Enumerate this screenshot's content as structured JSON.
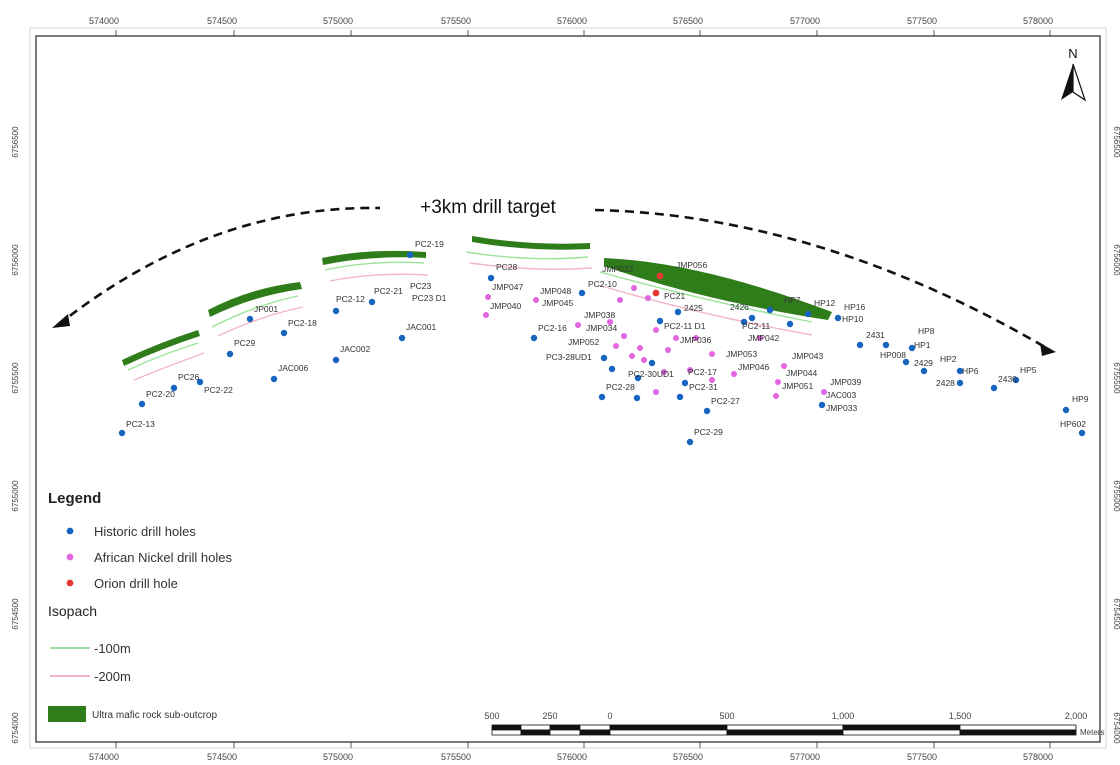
{
  "map": {
    "target_label": "+3km drill target",
    "north_label": "N",
    "x_ticks": [
      "574000",
      "574500",
      "575000",
      "575500",
      "576000",
      "576500",
      "577000",
      "577500",
      "578000"
    ],
    "y_ticks": [
      "6756500",
      "6756000",
      "6755500",
      "6755000",
      "6754500",
      "6754000"
    ],
    "legend": {
      "title": "Legend",
      "items": [
        {
          "label": "Historic drill holes",
          "color": "#1565c0"
        },
        {
          "label": "African Nickel drill holes",
          "color": "#e066e0"
        },
        {
          "label": "Orion drill hole",
          "color": "#e53935"
        }
      ],
      "isopach_title": "Isopach",
      "isopach": [
        {
          "label": "-100m",
          "color": "#9be39b"
        },
        {
          "label": "-200m",
          "color": "#f3b7c6"
        }
      ],
      "outcrop": {
        "label": "Ultra mafic rock sub-outcrop",
        "color": "#2e7d1a"
      }
    },
    "scalebar": {
      "labels": [
        "500",
        "250",
        "0",
        "500",
        "1,000",
        "1,500",
        "2,000"
      ],
      "unit": "Meters"
    },
    "historic_holes": [
      "PC2-19",
      "PC28",
      "PC23",
      "PC23 D1",
      "PC2-12",
      "PC2-21",
      "JP001",
      "PC2-18",
      "PC29",
      "JAC002",
      "JAC001",
      "JAC006",
      "PC26",
      "PC2-20",
      "PC2-22",
      "PC2-13",
      "PC2-10",
      "PC2-16",
      "PC3-28UD1",
      "PC2-28",
      "PC2-29",
      "PC2-27",
      "PC2-31",
      "PC2-17",
      "PC2-30UD1",
      "PC2-11 D1",
      "PC2-11",
      "2425",
      "2426",
      "HP7",
      "HP12",
      "HP16",
      "HP10",
      "2431",
      "HP8",
      "HP008",
      "HP1",
      "2429",
      "HP2",
      "HP6",
      "2428",
      "2430",
      "HP5",
      "HP9",
      "HP602",
      "PC21"
    ],
    "african_nickel_holes": [
      "JMP047",
      "JMP048",
      "JMP040",
      "JMP045",
      "JMP034",
      "JMP052",
      "JMP053",
      "JMP042",
      "JMP043",
      "JMP046",
      "JMP044",
      "JMP051",
      "JMP039",
      "JAC003",
      "JMP033",
      "JMP032",
      "JMP056",
      "JMP038",
      "JMP036"
    ],
    "orion_holes": [
      "PC21"
    ]
  }
}
